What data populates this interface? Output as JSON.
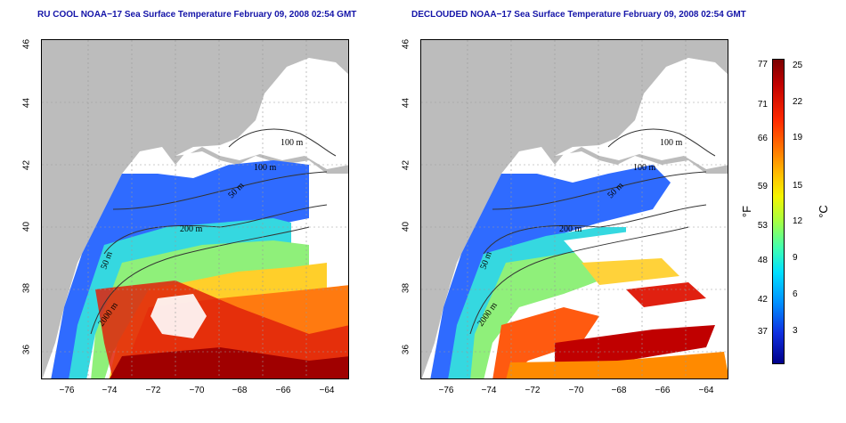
{
  "panels": [
    {
      "title": "RU COOL NOAA−17 Sea Surface Temperature February 09, 2008 02:54 GMT",
      "contour_labels": [
        "100 m",
        "100 m",
        "50 m",
        "200 m",
        "50 m",
        "2000 m"
      ]
    },
    {
      "title": "DECLOUDED NOAA−17 Sea Surface Temperature February 09, 2008 02:54 GMT",
      "contour_labels": [
        "100 m",
        "100 m",
        "50 m",
        "200 m",
        "50 m",
        "2000 m"
      ]
    }
  ],
  "axes": {
    "y_ticks": [
      "46",
      "44",
      "42",
      "40",
      "38",
      "36"
    ],
    "x_ticks": [
      "−76",
      "−74",
      "−72",
      "−70",
      "−68",
      "−66",
      "−64"
    ]
  },
  "colorbar": {
    "unit_f": "°F",
    "unit_c": "°C",
    "f_ticks": [
      "77",
      "71",
      "66",
      "59",
      "53",
      "48",
      "42",
      "37"
    ],
    "c_ticks": [
      "25",
      "22",
      "19",
      "15",
      "12",
      "9",
      "6",
      "3"
    ]
  }
}
